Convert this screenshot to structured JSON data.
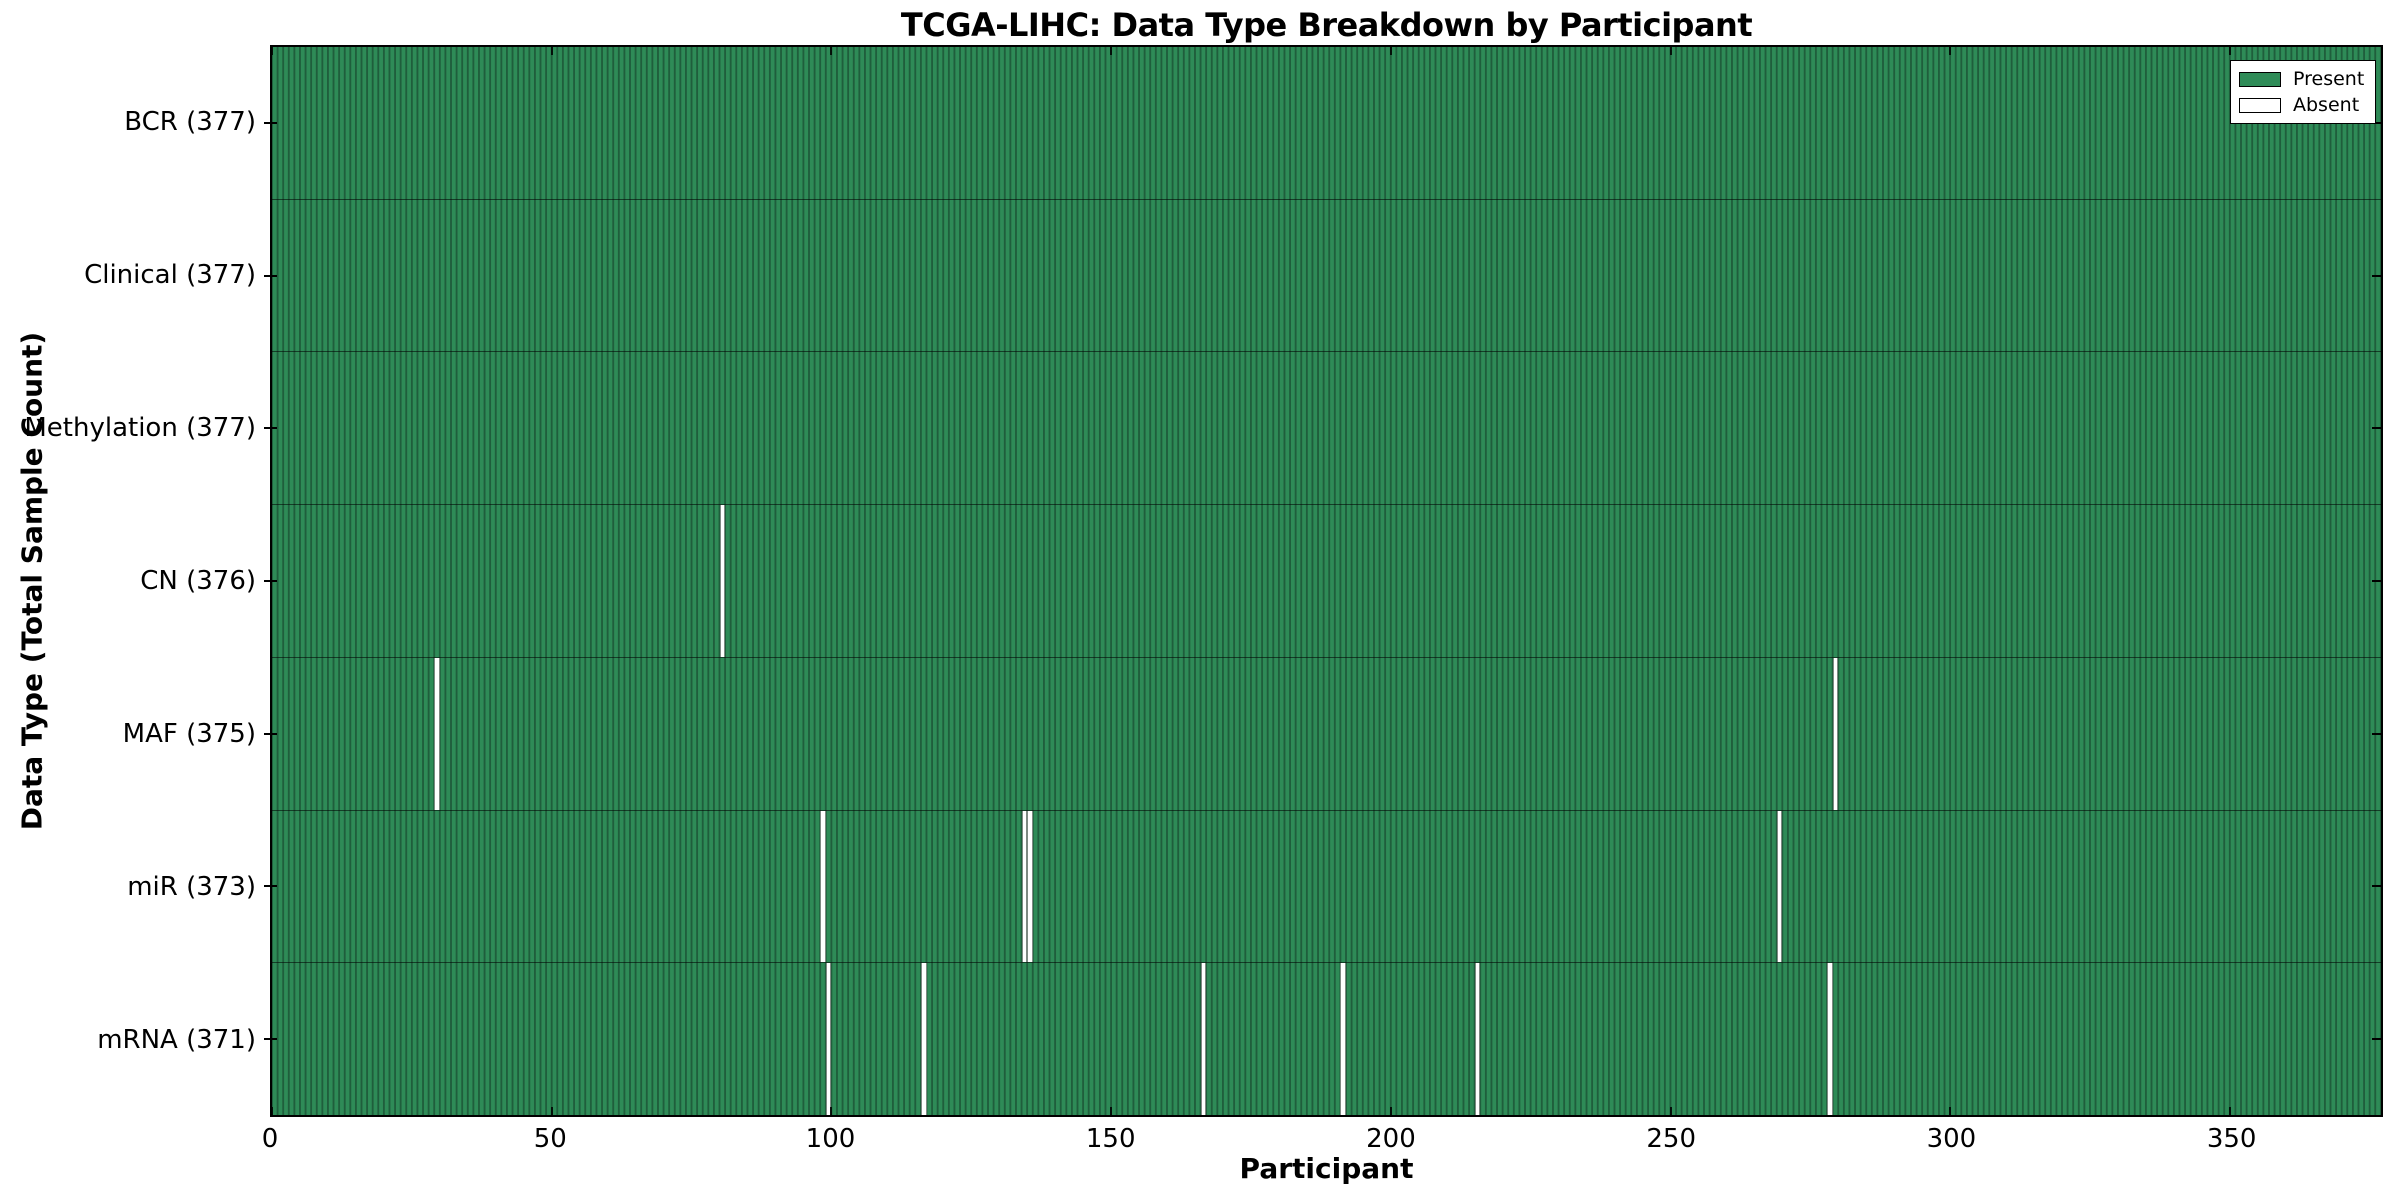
{
  "title": "TCGA-LIHC: Data Type Breakdown by Participant",
  "xlabel": "Participant",
  "ylabel": "Data Type (Total Sample Count)",
  "legend": {
    "position": "upper right",
    "items": [
      {
        "label": "Present",
        "color": "#2e8b57"
      },
      {
        "label": "Absent",
        "color": "#ffffff"
      }
    ]
  },
  "colors": {
    "present": "#2e8b57",
    "present_edge": "#1f5e3c",
    "absent": "#ffffff",
    "frame": "#000000"
  },
  "chart_data": {
    "type": "heatmap",
    "title": "TCGA-LIHC: Data Type Breakdown by Participant",
    "xlabel": "Participant",
    "ylabel": "Data Type (Total Sample Count)",
    "n_participants": 377,
    "x_axis": {
      "ticks": [
        0,
        50,
        100,
        150,
        200,
        250,
        300,
        350
      ],
      "min": 0,
      "max": 377
    },
    "legend_entries": [
      "Present",
      "Absent"
    ],
    "grid": false,
    "rows": [
      {
        "label": "BCR",
        "total": 377,
        "tick_label": "BCR (377)",
        "absent_participants": []
      },
      {
        "label": "Clinical",
        "total": 377,
        "tick_label": "Clinical (377)",
        "absent_participants": []
      },
      {
        "label": "Methylation",
        "total": 377,
        "tick_label": "Methylation (377)",
        "absent_participants": []
      },
      {
        "label": "CN",
        "total": 376,
        "tick_label": "CN (376)",
        "absent_participants": [
          80
        ]
      },
      {
        "label": "MAF",
        "total": 375,
        "tick_label": "MAF (375)",
        "absent_participants": [
          29,
          279
        ]
      },
      {
        "label": "miR",
        "total": 373,
        "tick_label": "miR (373)",
        "absent_participants": [
          98,
          134,
          135,
          269
        ]
      },
      {
        "label": "mRNA",
        "total": 371,
        "tick_label": "mRNA (371)",
        "absent_participants": [
          99,
          116,
          166,
          191,
          215,
          278
        ]
      }
    ]
  }
}
